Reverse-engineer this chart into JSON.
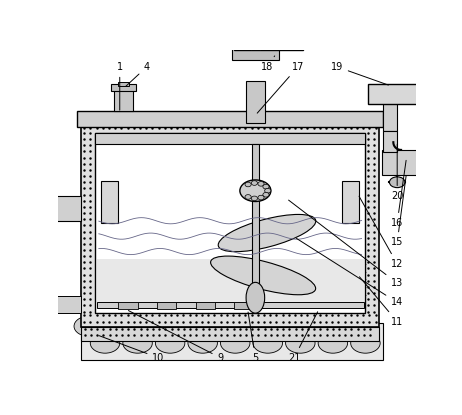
{
  "bg": "#ffffff",
  "lc": "#000000",
  "gray1": "#d8d8d8",
  "gray2": "#c0c0c0",
  "gray3": "#b0b0b0",
  "white": "#ffffff",
  "hatch_gray": "#e8e8e8"
}
